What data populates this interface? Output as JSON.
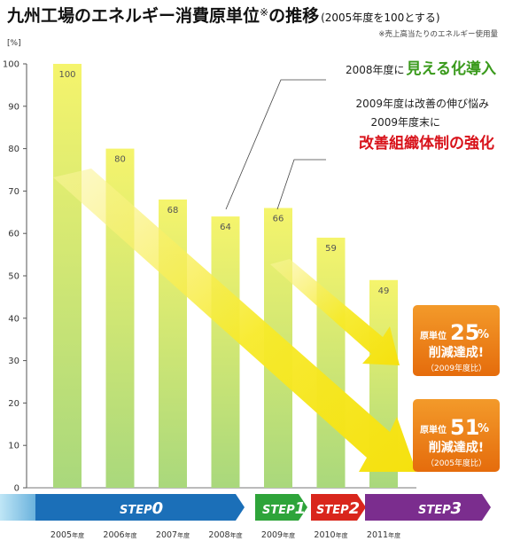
{
  "title": {
    "main": "九州工場のエネルギー消費原単位",
    "mark": "※",
    "main2": "の推移",
    "sub": "(2005年度を100とする)"
  },
  "footnote": "※売上高当たりのエネルギー使用量",
  "unit": "[%]",
  "chart_data": {
    "type": "bar",
    "categories": [
      "2005年度",
      "2006年度",
      "2007年度",
      "2008年度",
      "2009年度",
      "2010年度",
      "2011年度"
    ],
    "values": [
      100,
      80,
      68,
      64,
      66,
      59,
      49
    ],
    "ylim": [
      0,
      100
    ],
    "yticks": [
      0,
      10,
      20,
      30,
      40,
      50,
      60,
      70,
      80,
      90,
      100
    ],
    "grid": false
  },
  "annotations": {
    "a2008_small": "2008年度に",
    "a2008_big": "見える化導入",
    "a2009_line1": "2009年度は改善の伸び悩み",
    "a2009_line2": "2009年度末に",
    "a2009_big": "改善組織体制の強化"
  },
  "badges": [
    {
      "label": "原単位",
      "value": "25",
      "pct": "%",
      "line2": "削減達成!",
      "note": "（2009年度比）"
    },
    {
      "label": "原単位",
      "value": "51",
      "pct": "%",
      "line2": "削減達成!",
      "note": "（2005年度比）"
    }
  ],
  "steps": [
    {
      "word": "STEP",
      "num": "0",
      "color": "#1b6fb8"
    },
    {
      "word": "STEP",
      "num": "1",
      "color": "#2ea43a"
    },
    {
      "word": "STEP",
      "num": "2",
      "color": "#d9261c"
    },
    {
      "word": "STEP",
      "num": "3",
      "color": "#7b2d8e"
    }
  ],
  "colors": {
    "bar_top": "#f4f36a",
    "bar_bottom": "#a6d77a",
    "arrow": "#f5e81f",
    "badge": "#ef7d12"
  }
}
